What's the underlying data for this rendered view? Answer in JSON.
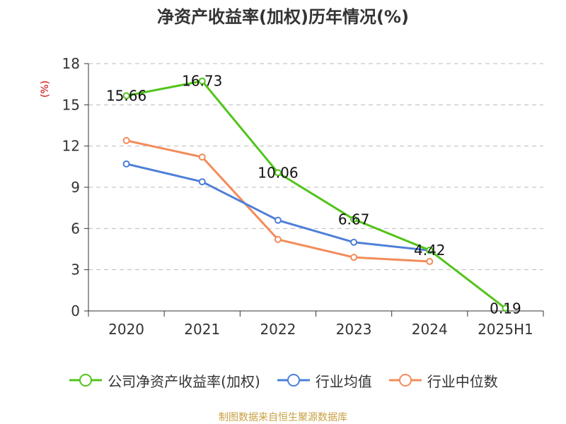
{
  "title": "净资产收益率(加权)历年情况(%)",
  "source": "制图数据来自恒生聚源数据库",
  "colors": {
    "company": "#52c41a",
    "industry_avg": "#4e7fd8",
    "industry_median": "#f28c5a",
    "unit": "#cc0000",
    "source": "#c8a042",
    "grid": "#bbbbbb",
    "axis": "#333333"
  },
  "chart_data": {
    "type": "line",
    "ylabel": "(%)",
    "ylim": [
      0,
      18
    ],
    "yticks": [
      "0",
      "3",
      "6",
      "9",
      "12",
      "15",
      "18"
    ],
    "categories": [
      "2020",
      "2021",
      "2022",
      "2023",
      "2024",
      "2025H1"
    ],
    "grid": true,
    "legend_position": "bottom",
    "series": [
      {
        "name": "公司净资产收益率(加权)",
        "color_key": "company",
        "values": [
          15.66,
          16.73,
          10.06,
          6.67,
          4.42,
          0.19
        ],
        "labels": [
          "15.66",
          "16.73",
          "10.06",
          "6.67",
          "4.42",
          "0.19"
        ]
      },
      {
        "name": "行业均值",
        "color_key": "industry_avg",
        "values": [
          10.7,
          9.4,
          6.6,
          5.0,
          4.4,
          null
        ]
      },
      {
        "name": "行业中位数",
        "color_key": "industry_median",
        "values": [
          12.4,
          11.2,
          5.2,
          3.9,
          3.6,
          null
        ]
      }
    ]
  }
}
